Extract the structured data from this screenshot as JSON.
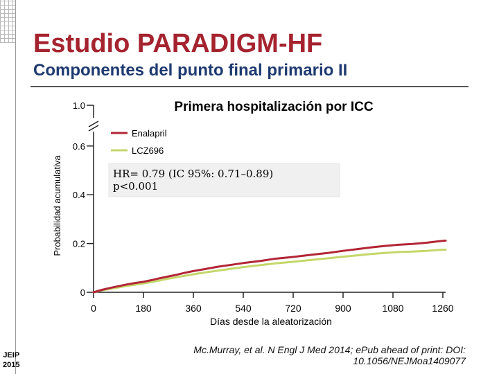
{
  "slide": {
    "title": "Estudio PARADIGM-HF",
    "subtitle": "Componentes del punto final primario II",
    "footer_left": [
      "JEIP",
      "2015"
    ],
    "citation": "Mc.Murray, et al. N Engl J Med 2014; ePub ahead of print: DOI: 10.1056/NEJMoa1409077"
  },
  "chart_data": {
    "type": "line",
    "title": "Primera hospitalización por ICC",
    "xlabel": "Días desde la aleatorización",
    "ylabel": "Probabilidad acumulativa",
    "x_ticks": [
      0,
      180,
      360,
      540,
      720,
      900,
      1080,
      1260
    ],
    "y_ticks": [
      {
        "value": 0,
        "label": "0"
      },
      {
        "value": 0.2,
        "label": "0.2"
      },
      {
        "value": 0.4,
        "label": "0.4"
      },
      {
        "value": 0.6,
        "label": "0.6"
      },
      {
        "value": 1.0,
        "label": "1.0"
      }
    ],
    "xlim": [
      0,
      1260
    ],
    "ylim": [
      0,
      1.0
    ],
    "axis_break": true,
    "legend_position": "top-left",
    "annotation": [
      "HR= 0.79 (IC 95%: 0.71–0.89)",
      "p<0.001"
    ],
    "series": [
      {
        "name": "Enalapril",
        "color": "#b22636",
        "x": [
          0,
          30,
          60,
          90,
          120,
          150,
          180,
          210,
          240,
          270,
          300,
          330,
          360,
          400,
          450,
          500,
          540,
          600,
          650,
          720,
          780,
          850,
          900,
          950,
          1000,
          1050,
          1100,
          1150,
          1200,
          1250,
          1270
        ],
        "y": [
          0,
          0.01,
          0.018,
          0.025,
          0.032,
          0.038,
          0.043,
          0.05,
          0.058,
          0.065,
          0.072,
          0.08,
          0.087,
          0.095,
          0.105,
          0.113,
          0.12,
          0.128,
          0.137,
          0.145,
          0.153,
          0.162,
          0.17,
          0.177,
          0.184,
          0.19,
          0.195,
          0.198,
          0.203,
          0.21,
          0.212
        ]
      },
      {
        "name": "LCZ696",
        "color": "#c4d76a",
        "x": [
          0,
          30,
          60,
          90,
          120,
          150,
          180,
          210,
          240,
          270,
          300,
          330,
          360,
          400,
          450,
          500,
          540,
          600,
          650,
          720,
          780,
          850,
          900,
          950,
          1000,
          1050,
          1100,
          1150,
          1200,
          1250,
          1270
        ],
        "y": [
          0,
          0.008,
          0.014,
          0.02,
          0.026,
          0.031,
          0.036,
          0.042,
          0.049,
          0.056,
          0.062,
          0.068,
          0.074,
          0.081,
          0.089,
          0.097,
          0.103,
          0.111,
          0.118,
          0.125,
          0.132,
          0.14,
          0.146,
          0.151,
          0.157,
          0.161,
          0.165,
          0.167,
          0.17,
          0.174,
          0.175
        ]
      }
    ]
  }
}
